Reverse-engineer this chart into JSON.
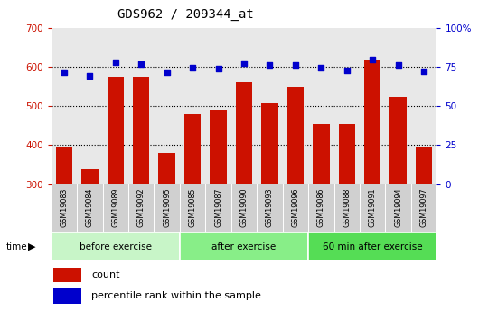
{
  "title": "GDS962 / 209344_at",
  "samples": [
    "GSM19083",
    "GSM19084",
    "GSM19089",
    "GSM19092",
    "GSM19095",
    "GSM19085",
    "GSM19087",
    "GSM19090",
    "GSM19093",
    "GSM19096",
    "GSM19086",
    "GSM19088",
    "GSM19091",
    "GSM19094",
    "GSM19097"
  ],
  "counts": [
    393,
    338,
    575,
    575,
    380,
    480,
    490,
    560,
    508,
    550,
    455,
    455,
    620,
    525,
    395
  ],
  "percentile_ranks": [
    71.5,
    69.5,
    78,
    77,
    71.5,
    74.5,
    74,
    77.5,
    76,
    76.5,
    74.5,
    73,
    80,
    76,
    72
  ],
  "groups": [
    {
      "label": "before exercise",
      "start": 0,
      "end": 5,
      "color": "#c8f5c8"
    },
    {
      "label": "after exercise",
      "start": 5,
      "end": 10,
      "color": "#88ee88"
    },
    {
      "label": "60 min after exercise",
      "start": 10,
      "end": 15,
      "color": "#55dd55"
    }
  ],
  "ylim_left": [
    300,
    700
  ],
  "ylim_right": [
    0,
    100
  ],
  "bar_color": "#cc1100",
  "dot_color": "#0000cc",
  "tick_color_left": "#cc1100",
  "tick_color_right": "#0000cc",
  "plot_bg": "#e8e8e8",
  "xtick_bg": "#d0d0d0",
  "label_count": "count",
  "label_percentile": "percentile rank within the sample",
  "group_border_color": "white"
}
